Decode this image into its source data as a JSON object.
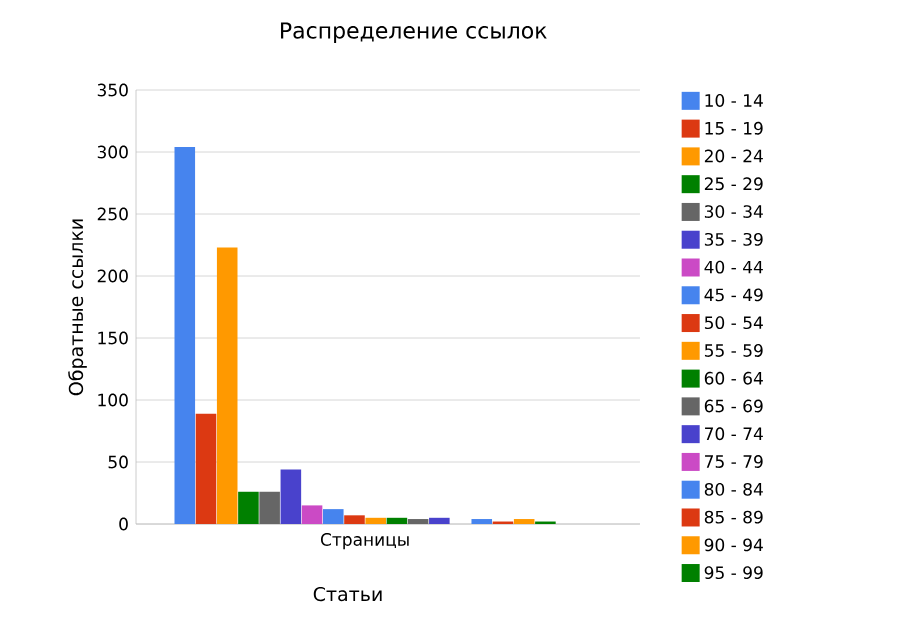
{
  "chart_data": {
    "type": "bar",
    "title": "Распределение ссылок",
    "xlabel": "Статьи",
    "ylabel": "Обратные ссылки",
    "categories": [
      "Страницы"
    ],
    "series": [
      {
        "name": "10 - 14",
        "color": "#4684ee",
        "values": [
          304
        ]
      },
      {
        "name": "15 - 19",
        "color": "#dc3912",
        "values": [
          89
        ]
      },
      {
        "name": "20 - 24",
        "color": "#ff9900",
        "values": [
          223
        ]
      },
      {
        "name": "25 - 29",
        "color": "#008000",
        "values": [
          26
        ]
      },
      {
        "name": "30 - 34",
        "color": "#666666",
        "values": [
          26
        ]
      },
      {
        "name": "35 - 39",
        "color": "#4942cc",
        "values": [
          44
        ]
      },
      {
        "name": "40 - 44",
        "color": "#cb4ac5",
        "values": [
          15
        ]
      },
      {
        "name": "45 - 49",
        "color": "#4684ee",
        "values": [
          12
        ]
      },
      {
        "name": "50 - 54",
        "color": "#dc3912",
        "values": [
          7
        ]
      },
      {
        "name": "55 - 59",
        "color": "#ff9900",
        "values": [
          5
        ]
      },
      {
        "name": "60 - 64",
        "color": "#008000",
        "values": [
          5
        ]
      },
      {
        "name": "65 - 69",
        "color": "#666666",
        "values": [
          4
        ]
      },
      {
        "name": "70 - 74",
        "color": "#4942cc",
        "values": [
          5
        ]
      },
      {
        "name": "75 - 79",
        "color": "#cb4ac5",
        "values": [
          0
        ]
      },
      {
        "name": "80 - 84",
        "color": "#4684ee",
        "values": [
          4
        ]
      },
      {
        "name": "85 - 89",
        "color": "#dc3912",
        "values": [
          2
        ]
      },
      {
        "name": "90 - 94",
        "color": "#ff9900",
        "values": [
          4
        ]
      },
      {
        "name": "95 - 99",
        "color": "#008000",
        "values": [
          2
        ]
      }
    ],
    "ylim": [
      0,
      350
    ],
    "yticks": [
      0,
      50,
      100,
      150,
      200,
      250,
      300,
      350
    ],
    "grid": "y",
    "legend": "right"
  }
}
